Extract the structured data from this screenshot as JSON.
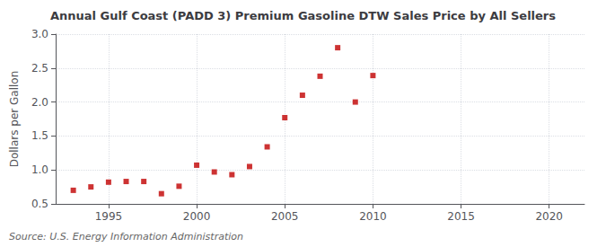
{
  "chart_data": {
    "type": "scatter",
    "title": "Annual Gulf Coast (PADD 3) Premium Gasoline DTW Sales Price by All Sellers",
    "ylabel": "Dollars per Gallon",
    "annotations": [
      "Source: U.S. Energy Information Administration"
    ],
    "x": [
      1993,
      1994,
      1995,
      1996,
      1997,
      1998,
      1999,
      2000,
      2001,
      2002,
      2003,
      2004,
      2005,
      2006,
      2007,
      2008,
      2009,
      2010
    ],
    "values": [
      0.7,
      0.75,
      0.82,
      0.83,
      0.83,
      0.65,
      0.76,
      1.07,
      0.97,
      0.93,
      1.05,
      1.34,
      1.77,
      2.1,
      2.38,
      2.8,
      2.0,
      2.39
    ],
    "color": "#c00000",
    "marker": "square",
    "xlim": [
      1992,
      2022
    ],
    "xticks": [
      1995,
      2000,
      2005,
      2010,
      2015,
      2020
    ],
    "ylim": [
      0.5,
      3.0
    ],
    "yticks": [
      0.5,
      {
        "value": 1.0,
        "label": "1.0"
      },
      1.5,
      {
        "value": 2.0,
        "label": "2.0"
      },
      2.5,
      {
        "value": 3.0,
        "label": "3.0"
      }
    ],
    "grid": true
  }
}
